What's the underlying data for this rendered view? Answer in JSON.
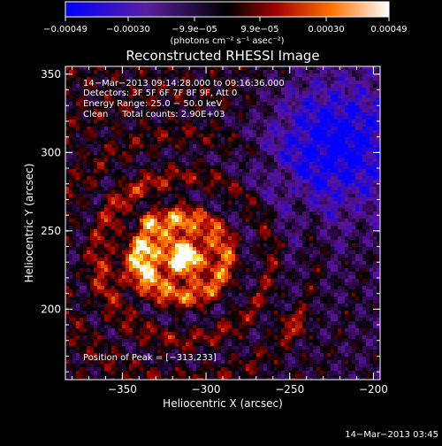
{
  "chart_data": {
    "type": "heatmap",
    "title": "Reconstructed RHESSI Image",
    "xlabel": "Heliocentric X (arcsec)",
    "ylabel": "Heliocentric Y (arcsec)",
    "xlim": [
      -384,
      -196
    ],
    "ylim": [
      155,
      355
    ],
    "xticks": [
      -350,
      -300,
      -250,
      -200
    ],
    "yticks": [
      200,
      250,
      300,
      350
    ],
    "xtick_labels": [
      "−350",
      "−300",
      "−250",
      "−200"
    ],
    "ytick_labels": [
      "200",
      "250",
      "300",
      "350"
    ],
    "colorbar": {
      "range": [
        -0.00049,
        0.00049
      ],
      "ticks": [
        -0.00049,
        -0.0003,
        -9.9e-05,
        9.9e-05,
        0.0003,
        0.00049
      ],
      "tick_labels": [
        "−0.00049",
        "−0.00030",
        "−9.9e−05",
        "9.9e−05",
        "0.00030",
        "0.00049"
      ],
      "unit_label": "(photons cm⁻² s⁻¹ asec⁻²)"
    },
    "annotations": {
      "time_range": "14−Mar−2013 09:14:28.000 to 09:16:36.000",
      "detectors": "Detectors: 3F 5F 6F 7F 8F 9F, Att 0",
      "energy_range": "Energy Range: 25.0 − 50.0 keV",
      "clean_counts": "Clean     Total counts: 2.90E+03",
      "peak_position": "Position of Peak = [−313,233]"
    },
    "peak": {
      "x": -313,
      "y": 233
    },
    "footer_date": "14−Mar−2013 03:45"
  }
}
